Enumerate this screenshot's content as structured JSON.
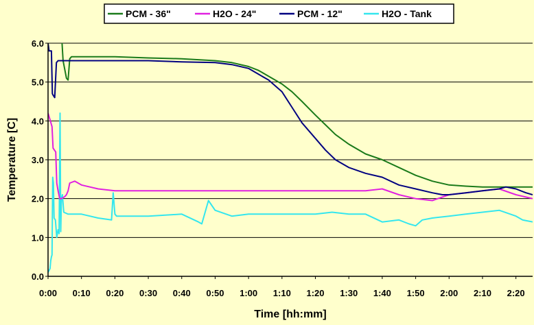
{
  "chart_data": {
    "type": "line",
    "xlabel": "Time [hh:mm]",
    "ylabel": "Temperature [C]",
    "xlim": [
      0,
      145
    ],
    "ylim": [
      0,
      6
    ],
    "x_ticks": [
      0,
      10,
      20,
      30,
      40,
      50,
      60,
      70,
      80,
      90,
      100,
      110,
      120,
      130,
      140
    ],
    "x_tick_labels": [
      "0:00",
      "0:10",
      "0:20",
      "0:30",
      "0:40",
      "0:50",
      "1:00",
      "1:10",
      "1:20",
      "1:30",
      "1:40",
      "1:50",
      "2:00",
      "2:10",
      "2:20"
    ],
    "y_ticks": [
      0,
      1,
      2,
      3,
      4,
      5,
      6
    ],
    "y_tick_labels": [
      "0.0",
      "1.0",
      "2.0",
      "3.0",
      "4.0",
      "5.0",
      "6.0"
    ],
    "grid": "horizontal",
    "legend_position": "top",
    "series": [
      {
        "name": "PCM - 36\"",
        "color": "#1a7a1a",
        "x": [
          0,
          3,
          4,
          4.2,
          4.5,
          5.5,
          6,
          6.5,
          7,
          10,
          20,
          30,
          40,
          50,
          55,
          60,
          63,
          66,
          70,
          73,
          76,
          80,
          83,
          86,
          90,
          95,
          100,
          105,
          110,
          115,
          120,
          125,
          130,
          135,
          140,
          143,
          145
        ],
        "y": [
          6.3,
          6.3,
          6.3,
          6.0,
          5.55,
          5.1,
          5.05,
          5.6,
          5.65,
          5.65,
          5.65,
          5.62,
          5.6,
          5.55,
          5.5,
          5.4,
          5.3,
          5.15,
          4.95,
          4.75,
          4.5,
          4.15,
          3.9,
          3.65,
          3.4,
          3.15,
          3.0,
          2.8,
          2.6,
          2.45,
          2.35,
          2.32,
          2.3,
          2.3,
          2.3,
          2.3,
          2.3
        ]
      },
      {
        "name": "H2O - 24\"",
        "color": "#e020e0",
        "x": [
          0,
          0.7,
          1.2,
          1.5,
          2.3,
          2.6,
          3,
          3.5,
          4,
          5,
          5.5,
          6,
          6.5,
          8,
          10,
          15,
          20,
          30,
          40,
          50,
          60,
          70,
          80,
          90,
          95,
          100,
          105,
          110,
          115,
          120,
          125,
          130,
          135,
          140,
          145
        ],
        "y": [
          4.2,
          4.0,
          3.85,
          3.3,
          3.2,
          2.4,
          2.2,
          2.0,
          2.0,
          2.05,
          2.1,
          2.2,
          2.4,
          2.45,
          2.35,
          2.25,
          2.2,
          2.2,
          2.2,
          2.2,
          2.2,
          2.2,
          2.2,
          2.2,
          2.2,
          2.25,
          2.1,
          2.0,
          1.95,
          2.1,
          2.15,
          2.2,
          2.25,
          2.1,
          2.0
        ]
      },
      {
        "name": "PCM - 12\"",
        "color": "#000080",
        "x": [
          0,
          0.3,
          1,
          1.3,
          1.6,
          2,
          2.5,
          3,
          3.5,
          4,
          8,
          10,
          20,
          30,
          40,
          50,
          55,
          60,
          63,
          66,
          70,
          73,
          76,
          80,
          83,
          86,
          90,
          95,
          100,
          105,
          110,
          115,
          118,
          120,
          125,
          130,
          135,
          137,
          140,
          143,
          145
        ],
        "y": [
          6.0,
          5.8,
          5.8,
          4.7,
          4.65,
          4.6,
          5.5,
          5.55,
          5.55,
          5.55,
          5.55,
          5.55,
          5.55,
          5.55,
          5.52,
          5.5,
          5.45,
          5.35,
          5.2,
          5.05,
          4.75,
          4.35,
          3.95,
          3.55,
          3.25,
          3.0,
          2.8,
          2.65,
          2.55,
          2.35,
          2.25,
          2.15,
          2.1,
          2.1,
          2.15,
          2.2,
          2.25,
          2.3,
          2.25,
          2.15,
          2.1
        ]
      },
      {
        "name": "H2O - Tank",
        "color": "#33e6ee",
        "x": [
          0,
          0.3,
          0.6,
          0.8,
          1.0,
          1.2,
          1.4,
          1.6,
          1.8,
          2.2,
          2.6,
          3,
          3.3,
          3.6,
          3.8,
          4.0,
          4.3,
          4.7,
          6,
          10,
          15,
          19,
          19.5,
          20,
          20.5,
          22,
          30,
          40,
          45,
          46,
          48,
          50,
          55,
          60,
          70,
          80,
          85,
          90,
          95,
          100,
          105,
          108,
          110,
          112,
          115,
          120,
          125,
          130,
          135,
          140,
          142,
          145
        ],
        "y": [
          0.1,
          0.15,
          0.2,
          0.4,
          0.5,
          0.55,
          2.55,
          2.4,
          1.5,
          1.45,
          1.0,
          1.2,
          1.1,
          4.2,
          1.15,
          2.0,
          2.1,
          1.65,
          1.6,
          1.6,
          1.5,
          1.45,
          2.15,
          1.6,
          1.55,
          1.55,
          1.55,
          1.6,
          1.4,
          1.35,
          1.95,
          1.7,
          1.55,
          1.6,
          1.6,
          1.6,
          1.65,
          1.6,
          1.6,
          1.4,
          1.45,
          1.35,
          1.3,
          1.45,
          1.5,
          1.55,
          1.6,
          1.65,
          1.7,
          1.55,
          1.45,
          1.4
        ]
      }
    ]
  }
}
